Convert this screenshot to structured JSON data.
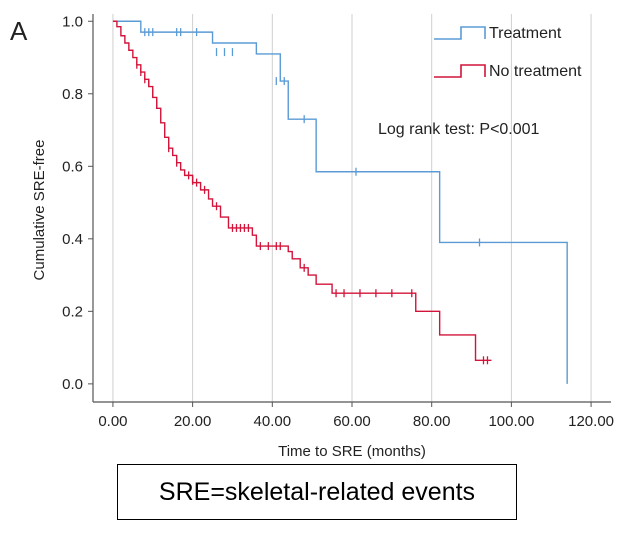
{
  "panel_label": "A",
  "footnote": "SRE=skeletal-related events",
  "annotation": "Log rank test: P<0.001",
  "colors": {
    "treatment": "#5b9bd5",
    "no_treatment": "#d2143a",
    "axis": "#555555",
    "grid": "#cfcfcf"
  },
  "chart_data": {
    "type": "line",
    "subtype": "kaplan-meier step",
    "xlabel": "Time to SRE (months)",
    "ylabel": "Cumulative SRE-free",
    "xlim": [
      -5,
      125
    ],
    "ylim": [
      -0.05,
      1.02
    ],
    "x_ticks": [
      0,
      20,
      40,
      60,
      80,
      100,
      120
    ],
    "x_tick_labels": [
      "0.00",
      "20.00",
      "40.00",
      "60.00",
      "80.00",
      "100.00",
      "120.00"
    ],
    "y_ticks": [
      0.0,
      0.2,
      0.4,
      0.6,
      0.8,
      1.0
    ],
    "y_tick_labels": [
      "0.0",
      "0.2",
      "0.4",
      "0.6",
      "0.8",
      "1.0"
    ],
    "grid": "vertical lines at x ticks",
    "legend_position": "top-right",
    "series": [
      {
        "name": "Treatment",
        "color_key": "treatment",
        "steps": [
          [
            0,
            1.0
          ],
          [
            7,
            0.97
          ],
          [
            25,
            0.94
          ],
          [
            36,
            0.91
          ],
          [
            42,
            0.835
          ],
          [
            44,
            0.73
          ],
          [
            51,
            0.585
          ],
          [
            82,
            0.39
          ],
          [
            114,
            0.0
          ]
        ],
        "end_x": 114,
        "censored": [
          [
            8,
            0.97
          ],
          [
            9,
            0.97
          ],
          [
            10,
            0.97
          ],
          [
            16,
            0.97
          ],
          [
            17,
            0.97
          ],
          [
            21,
            0.97
          ],
          [
            26,
            0.915
          ],
          [
            28,
            0.915
          ],
          [
            30,
            0.915
          ],
          [
            41,
            0.835
          ],
          [
            43,
            0.835
          ],
          [
            48,
            0.73
          ],
          [
            61,
            0.585
          ],
          [
            92,
            0.39
          ]
        ]
      },
      {
        "name": "No treatment",
        "color_key": "no_treatment",
        "steps": [
          [
            0,
            1.0
          ],
          [
            1,
            0.985
          ],
          [
            2,
            0.96
          ],
          [
            3,
            0.94
          ],
          [
            4,
            0.92
          ],
          [
            5,
            0.9
          ],
          [
            6,
            0.88
          ],
          [
            7,
            0.86
          ],
          [
            8,
            0.84
          ],
          [
            9,
            0.82
          ],
          [
            10,
            0.79
          ],
          [
            11,
            0.76
          ],
          [
            12,
            0.72
          ],
          [
            13,
            0.68
          ],
          [
            14,
            0.65
          ],
          [
            15,
            0.63
          ],
          [
            16,
            0.61
          ],
          [
            17,
            0.59
          ],
          [
            18,
            0.575
          ],
          [
            20,
            0.555
          ],
          [
            22,
            0.535
          ],
          [
            24,
            0.51
          ],
          [
            25,
            0.49
          ],
          [
            27,
            0.46
          ],
          [
            29,
            0.43
          ],
          [
            35,
            0.41
          ],
          [
            36,
            0.38
          ],
          [
            44,
            0.365
          ],
          [
            45,
            0.345
          ],
          [
            47,
            0.32
          ],
          [
            49,
            0.3
          ],
          [
            51,
            0.275
          ],
          [
            55,
            0.25
          ],
          [
            76,
            0.2
          ],
          [
            82,
            0.135
          ],
          [
            91,
            0.065
          ]
        ],
        "end_x": 95,
        "censored": [
          [
            6,
            0.88
          ],
          [
            7,
            0.86
          ],
          [
            8,
            0.84
          ],
          [
            9,
            0.83
          ],
          [
            10,
            0.8
          ],
          [
            11,
            0.77
          ],
          [
            14,
            0.65
          ],
          [
            16,
            0.61
          ],
          [
            19,
            0.575
          ],
          [
            20,
            0.56
          ],
          [
            21,
            0.555
          ],
          [
            23,
            0.535
          ],
          [
            26,
            0.49
          ],
          [
            30,
            0.43
          ],
          [
            31,
            0.43
          ],
          [
            32,
            0.43
          ],
          [
            33,
            0.43
          ],
          [
            34,
            0.43
          ],
          [
            37,
            0.38
          ],
          [
            39,
            0.38
          ],
          [
            41,
            0.38
          ],
          [
            42,
            0.38
          ],
          [
            48,
            0.32
          ],
          [
            56,
            0.25
          ],
          [
            58,
            0.25
          ],
          [
            62,
            0.25
          ],
          [
            66,
            0.25
          ],
          [
            70,
            0.25
          ],
          [
            75,
            0.25
          ],
          [
            93,
            0.065
          ],
          [
            94,
            0.065
          ]
        ]
      }
    ]
  }
}
